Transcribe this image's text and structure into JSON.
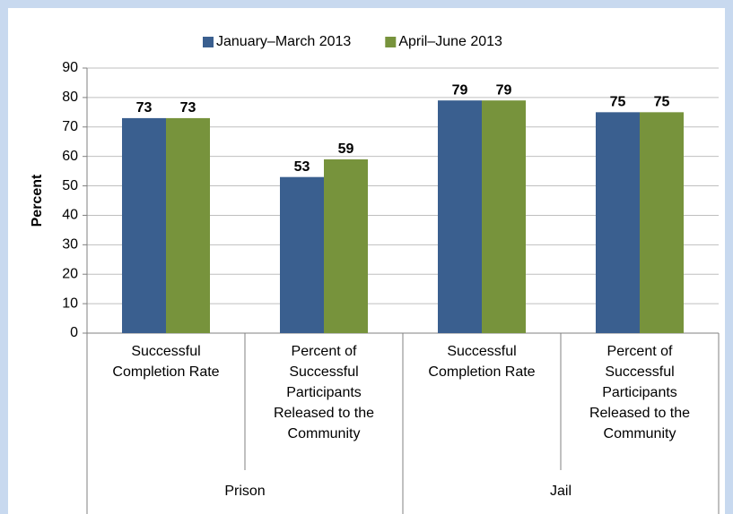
{
  "chart_data": {
    "type": "bar",
    "y_label": "Percent",
    "groups": [
      {
        "name": "Prison",
        "categories": [
          "Successful Completion Rate",
          "Percent of Successful Participants Released to the Community"
        ]
      },
      {
        "name": "Jail",
        "categories": [
          "Successful Completion Rate",
          "Percent of Successful Participants Released to the Community"
        ]
      }
    ],
    "series": [
      {
        "name": "January–March 2013",
        "color": "#3a5f8f",
        "values": [
          73,
          53,
          79,
          75
        ]
      },
      {
        "name": "April–June 2013",
        "color": "#77933c",
        "values": [
          73,
          59,
          79,
          75
        ]
      }
    ],
    "ylim": [
      0,
      90
    ],
    "yticks": [
      0,
      10,
      20,
      30,
      40,
      50,
      60,
      70,
      80,
      90
    ],
    "grid": true,
    "legend": "top"
  }
}
